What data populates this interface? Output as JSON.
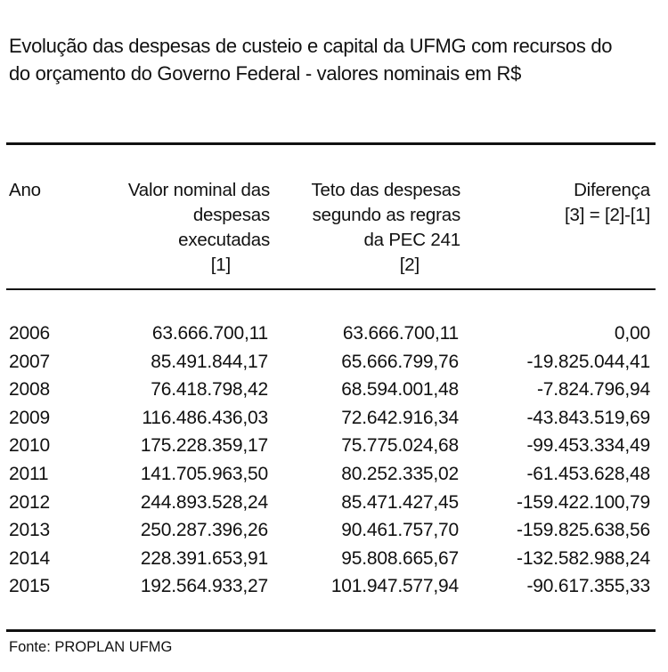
{
  "title": {
    "line1": "Evolução das despesas de custeio e capital da UFMG com recursos do",
    "line2": "do orçamento do Governo Federal - valores nominais em R$"
  },
  "headers": {
    "ano": [
      "Ano"
    ],
    "valor": [
      "Valor nominal das",
      "despesas",
      "executadas",
      "[1]"
    ],
    "teto": [
      "Teto das despesas",
      "segundo as regras",
      "da PEC 241",
      "[2]"
    ],
    "diferenca": [
      "Diferença",
      "[3] = [2]-[1]"
    ]
  },
  "rows": [
    {
      "ano": "2006",
      "valor": "63.666.700,11",
      "teto": "63.666.700,11",
      "diferenca": "0,00"
    },
    {
      "ano": "2007",
      "valor": "85.491.844,17",
      "teto": "65.666.799,76",
      "diferenca": "-19.825.044,41"
    },
    {
      "ano": "2008",
      "valor": "76.418.798,42",
      "teto": "68.594.001,48",
      "diferenca": "-7.824.796,94"
    },
    {
      "ano": "2009",
      "valor": "116.486.436,03",
      "teto": "72.642.916,34",
      "diferenca": "-43.843.519,69"
    },
    {
      "ano": "2010",
      "valor": "175.228.359,17",
      "teto": "75.775.024,68",
      "diferenca": "-99.453.334,49"
    },
    {
      "ano": "2011",
      "valor": "141.705.963,50",
      "teto": "80.252.335,02",
      "diferenca": "-61.453.628,48"
    },
    {
      "ano": "2012",
      "valor": "244.893.528,24",
      "teto": "85.471.427,45",
      "diferenca": "-159.422.100,79"
    },
    {
      "ano": "2013",
      "valor": "250.287.396,26",
      "teto": "90.461.757,70",
      "diferenca": "-159.825.638,56"
    },
    {
      "ano": "2014",
      "valor": "228.391.653,91",
      "teto": "95.808.665,67",
      "diferenca": "-132.582.988,24"
    },
    {
      "ano": "2015",
      "valor": "192.564.933,27",
      "teto": "101.947.577,94",
      "diferenca": "-90.617.355,33"
    }
  ],
  "source": "Fonte: PROPLAN UFMG"
}
